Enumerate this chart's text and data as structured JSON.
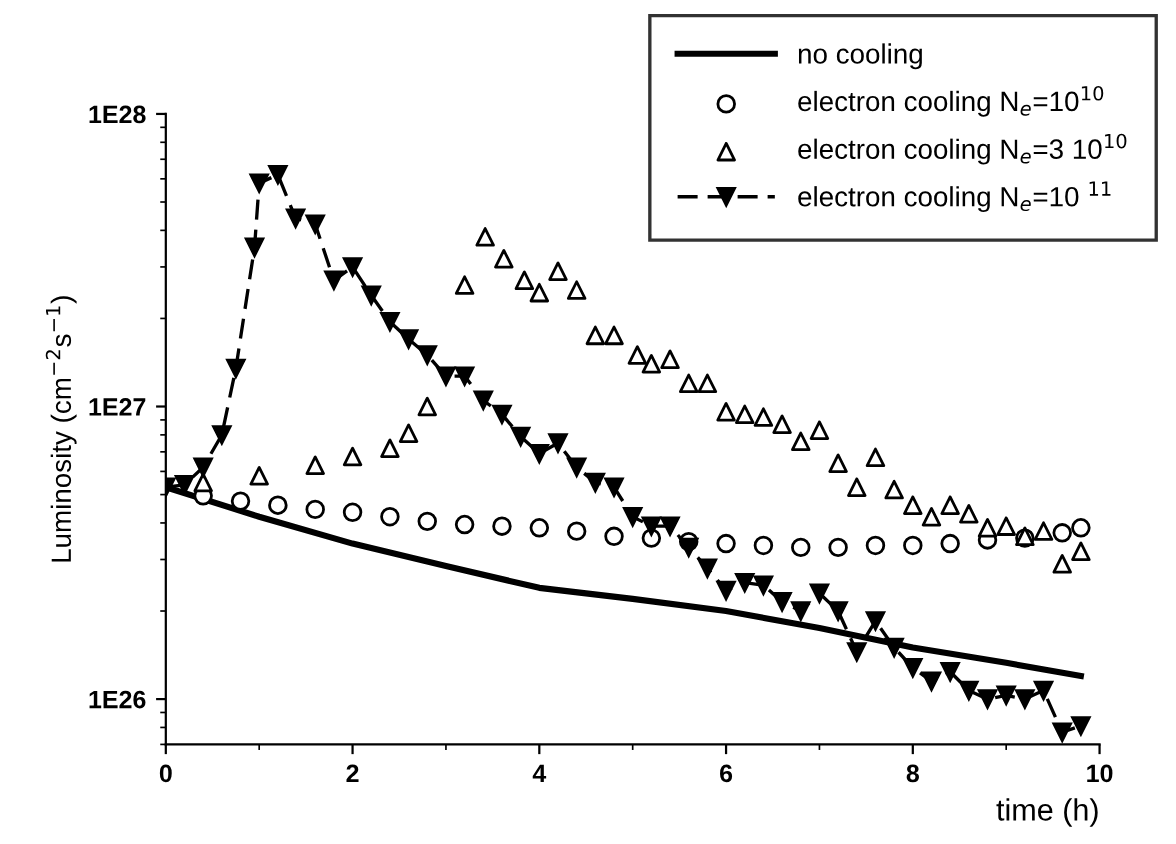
{
  "chart_data": {
    "type": "line",
    "xlabel": "time (h)",
    "ylabel": "Luminosity (cm$^{−2}$s$^{−1}$)",
    "xlim": [
      0,
      10
    ],
    "xticks": [
      0,
      2,
      4,
      6,
      8,
      10
    ],
    "ylim": [
      7e+25,
      1e+28
    ],
    "yticks": [
      {
        "value": 1e+26,
        "label": "1E26"
      },
      {
        "value": 1e+27,
        "label": "1E27"
      },
      {
        "value": 1e+28,
        "label": "1E28"
      }
    ],
    "log": "y",
    "grid": false,
    "legend": "top right",
    "series": [
      {
        "name": "no cooling",
        "color": "#000000",
        "marker": "none",
        "line_style": "solid",
        "x": [
          0,
          1,
          2,
          3,
          4,
          5,
          6,
          7,
          8,
          9,
          9.8
        ],
        "values": [
          5.3e+26,
          4.2e+26,
          3.4e+26,
          2.85e+26,
          2.4e+26,
          2.2e+26,
          2e+26,
          1.75e+26,
          1.5e+26,
          1.33e+26,
          1.2e+26
        ]
      },
      {
        "name": "electron cooling N$_{e}$=10$^{10}$",
        "type": "scatter",
        "color": "#000000",
        "marker": "circle",
        "x": [
          0.4,
          0.8,
          1.2,
          1.6,
          2.0,
          2.4,
          2.8,
          3.2,
          3.6,
          4.0,
          4.4,
          4.8,
          5.2,
          5.6,
          6.0,
          6.4,
          6.8,
          7.2,
          7.6,
          8.0,
          8.4,
          8.8,
          9.2,
          9.6,
          9.8
        ],
        "values": [
          4.95e+26,
          4.75e+26,
          4.6e+26,
          4.45e+26,
          4.35e+26,
          4.2e+26,
          4.05e+26,
          3.95e+26,
          3.9e+26,
          3.85e+26,
          3.75e+26,
          3.6e+26,
          3.55e+26,
          3.45e+26,
          3.4e+26,
          3.35e+26,
          3.3e+26,
          3.3e+26,
          3.35e+26,
          3.35e+26,
          3.4e+26,
          3.5e+26,
          3.55e+26,
          3.7e+26,
          3.85e+26
        ]
      },
      {
        "name": "electron cooling N$_{e}$=3 10$^{10}$",
        "type": "scatter",
        "color": "#000000",
        "marker": "triangle",
        "x": [
          0.4,
          1.0,
          1.6,
          2.0,
          2.4,
          2.6,
          2.8,
          3.2,
          3.42,
          3.62,
          3.84,
          4.0,
          4.2,
          4.4,
          4.6,
          4.8,
          5.05,
          5.2,
          5.4,
          5.6,
          5.8,
          6.0,
          6.2,
          6.4,
          6.6,
          6.8,
          7.0,
          7.2,
          7.4,
          7.6,
          7.8,
          8.0,
          8.2,
          8.4,
          8.6,
          8.8,
          9.0,
          9.2,
          9.4,
          9.6,
          9.8
        ],
        "values": [
          5.5e+26,
          5.8e+26,
          6.3e+26,
          6.75e+26,
          7.2e+26,
          8.1e+26,
          1e+27,
          2.6e+27,
          3.8e+27,
          3.2e+27,
          2.7e+27,
          2.45e+27,
          2.9e+27,
          2.5e+27,
          1.75e+27,
          1.75e+27,
          1.5e+27,
          1.4e+27,
          1.45e+27,
          1.2e+27,
          1.2e+27,
          9.6e+26,
          9.4e+26,
          9.2e+26,
          8.7e+26,
          7.6e+26,
          8.3e+26,
          6.4e+26,
          5.3e+26,
          6.7e+26,
          5.2e+26,
          4.6e+26,
          4.2e+26,
          4.6e+26,
          4.3e+26,
          3.85e+26,
          3.9e+26,
          3.6e+26,
          3.75e+26,
          2.9e+26,
          3.2e+26
        ]
      },
      {
        "name": "electron cooling N$_{e}$=10 $^{11}$",
        "color": "#000000",
        "marker": "triangle_down",
        "line_style": "dashed",
        "x": [
          0,
          0.2,
          0.4,
          0.6,
          0.75,
          0.95,
          1.0,
          1.2,
          1.39,
          1.6,
          1.8,
          2.0,
          2.2,
          2.4,
          2.6,
          2.8,
          3.0,
          3.2,
          3.4,
          3.6,
          3.8,
          4.0,
          4.2,
          4.4,
          4.6,
          4.8,
          5.0,
          5.2,
          5.4,
          5.6,
          5.8,
          6.0,
          6.2,
          6.4,
          6.6,
          6.8,
          7.0,
          7.2,
          7.4,
          7.6,
          7.8,
          8.0,
          8.2,
          8.4,
          8.6,
          8.8,
          9.0,
          9.2,
          9.4,
          9.6,
          9.8
        ],
        "values": [
          5.3e+26,
          5.4e+26,
          6.2e+26,
          8e+26,
          1.35e+27,
          3.5e+27,
          5.8e+27,
          6.2e+27,
          4.4e+27,
          4.2e+27,
          2.7e+27,
          3e+27,
          2.4e+27,
          1.95e+27,
          1.7e+27,
          1.5e+27,
          1.27e+27,
          1.27e+27,
          1.05e+27,
          9.4e+26,
          7.9e+26,
          6.9e+26,
          7.5e+26,
          6.2e+26,
          5.5e+26,
          5.3e+26,
          4.2e+26,
          3.9e+26,
          3.9e+26,
          3.3e+26,
          2.8e+26,
          2.35e+26,
          2.5e+26,
          2.45e+26,
          2.15e+26,
          2e+26,
          2.3e+26,
          2e+26,
          1.45e+26,
          1.85e+26,
          1.5e+26,
          1.28e+26,
          1.15e+26,
          1.24e+26,
          1.07e+26,
          1e+26,
          1.03e+26,
          1e+26,
          1.07e+26,
          7.7e+25,
          8.1e+25
        ]
      }
    ]
  }
}
